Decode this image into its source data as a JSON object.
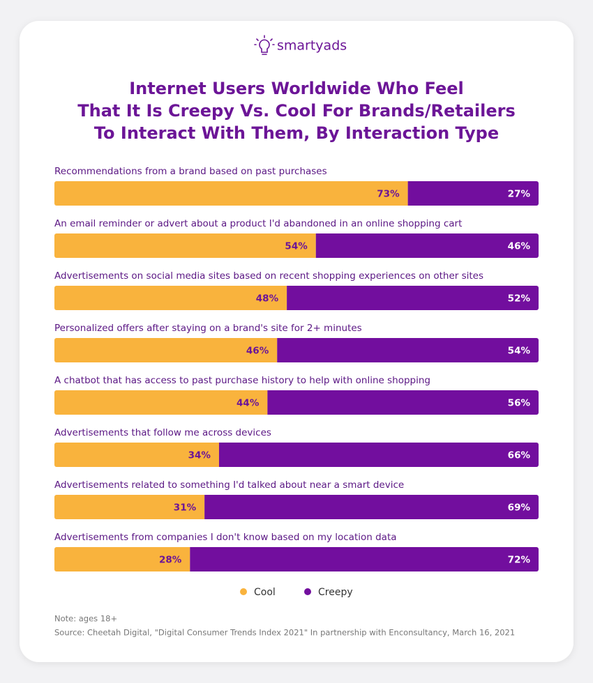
{
  "chart_data": {
    "type": "bar",
    "orientation": "horizontal",
    "stacked": true,
    "brand": "smartyads",
    "title": [
      "Internet Users Worldwide Who Feel",
      "That It Is Creepy Vs. Cool For Brands/Retailers",
      "To Interact With Them, By Interaction Type"
    ],
    "categories": [
      "Recommendations from a brand based on past purchases",
      "An email reminder or advert about a product I'd abandoned in an online shopping cart",
      "Advertisements on social media sites based on recent shopping experiences on other sites",
      "Personalized offers after staying on a brand's site for 2+ minutes",
      "A chatbot that has access to past purchase history to help with online shopping",
      "Advertisements that follow me across devices",
      "Advertisements related to something I'd talked about near a smart device",
      "Advertisements from companies I don't know based on my location data"
    ],
    "series": [
      {
        "name": "Cool",
        "color": "#f9b33d",
        "label_color": "#6c1597",
        "values": [
          73,
          54,
          48,
          46,
          44,
          34,
          31,
          28
        ],
        "value_labels": [
          "73%",
          "54%",
          "48%",
          "46%",
          "44%",
          "34%",
          "31%",
          "28%"
        ]
      },
      {
        "name": "Creepy",
        "color": "#720e9e",
        "label_color": "#ffffff",
        "values": [
          27,
          46,
          52,
          54,
          56,
          66,
          69,
          72
        ],
        "value_labels": [
          "27%",
          "46%",
          "52%",
          "54%",
          "56%",
          "66%",
          "69%",
          "72%"
        ]
      }
    ],
    "xlim": [
      0,
      100
    ],
    "note": "Note: ages 18+",
    "source": "Source: Cheetah Digital, \"Digital Consumer Trends Index 2021\" In partnership with Enconsultancy, March 16, 2021"
  }
}
